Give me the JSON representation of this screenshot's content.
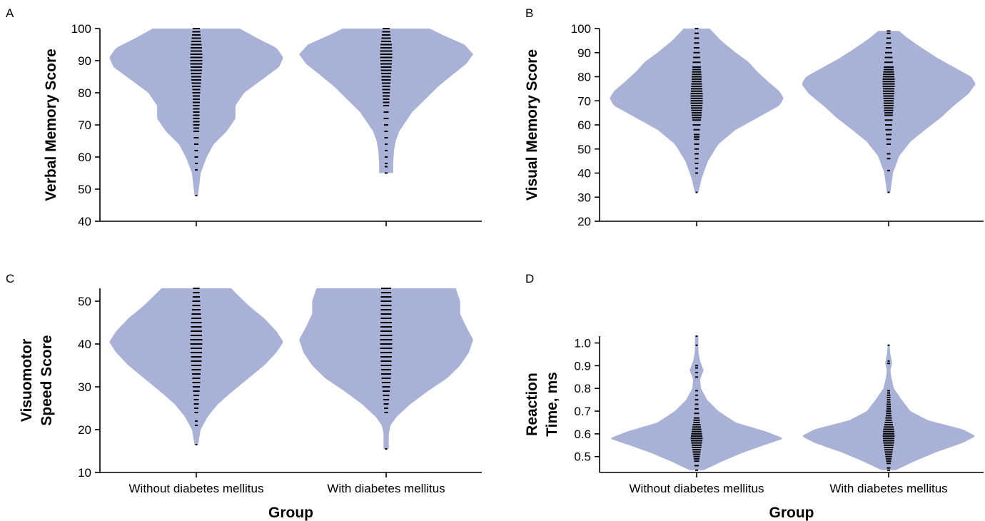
{
  "colors": {
    "violin": "#a9b2d6",
    "points": "#000000",
    "axis": "#000000",
    "background": "#ffffff"
  },
  "chart_data": [
    {
      "type": "violin",
      "panel_label": "A",
      "title": "",
      "ylabel": "Verbal Memory Score",
      "xlabel": "",
      "ylim": [
        40,
        100
      ],
      "yticks": [
        40,
        50,
        60,
        70,
        80,
        90,
        100
      ],
      "categories": [
        "Without diabetes mellitus",
        "With diabetes mellitus"
      ],
      "show_category_labels": false,
      "grid": false,
      "distributions": [
        {
          "category": "Without diabetes mellitus",
          "range": [
            48,
            100
          ],
          "density": [
            [
              48,
              0.02
            ],
            [
              55,
              0.05
            ],
            [
              60,
              0.12
            ],
            [
              64,
              0.2
            ],
            [
              68,
              0.35
            ],
            [
              72,
              0.45
            ],
            [
              76,
              0.45
            ],
            [
              80,
              0.55
            ],
            [
              84,
              0.75
            ],
            [
              88,
              0.95
            ],
            [
              91,
              1.0
            ],
            [
              94,
              0.92
            ],
            [
              97,
              0.7
            ],
            [
              100,
              0.5
            ]
          ],
          "points": [
            48,
            56,
            58,
            60,
            62,
            64,
            66,
            68,
            69,
            70,
            71,
            72,
            73,
            74,
            75,
            76,
            77,
            78,
            79,
            80,
            81,
            82,
            83,
            84,
            85,
            86,
            87,
            88,
            89,
            90,
            91,
            92,
            93,
            94,
            95,
            96,
            97,
            98,
            99,
            100
          ]
        },
        {
          "category": "With diabetes mellitus",
          "range": [
            55,
            100
          ],
          "density": [
            [
              55,
              0.08
            ],
            [
              58,
              0.08
            ],
            [
              62,
              0.09
            ],
            [
              65,
              0.11
            ],
            [
              68,
              0.15
            ],
            [
              70,
              0.2
            ],
            [
              74,
              0.3
            ],
            [
              78,
              0.45
            ],
            [
              82,
              0.6
            ],
            [
              86,
              0.78
            ],
            [
              89,
              0.92
            ],
            [
              92,
              1.0
            ],
            [
              95,
              0.9
            ],
            [
              98,
              0.65
            ],
            [
              100,
              0.5
            ]
          ],
          "points": [
            55,
            57,
            58,
            60,
            62,
            64,
            66,
            68,
            70,
            72,
            74,
            76,
            77,
            78,
            79,
            80,
            81,
            82,
            83,
            84,
            85,
            86,
            87,
            88,
            89,
            90,
            91,
            92,
            93,
            94,
            95,
            96,
            97,
            98,
            99,
            100
          ]
        }
      ]
    },
    {
      "type": "violin",
      "panel_label": "B",
      "title": "",
      "ylabel": "Visual Memory Score",
      "xlabel": "",
      "ylim": [
        20,
        100
      ],
      "yticks": [
        20,
        30,
        40,
        50,
        60,
        70,
        80,
        90,
        100
      ],
      "categories": [
        "Without diabetes mellitus",
        "With diabetes mellitus"
      ],
      "show_category_labels": false,
      "grid": false,
      "distributions": [
        {
          "category": "Without diabetes mellitus",
          "range": [
            32,
            100
          ],
          "density": [
            [
              32,
              0.02
            ],
            [
              38,
              0.06
            ],
            [
              45,
              0.13
            ],
            [
              52,
              0.25
            ],
            [
              58,
              0.45
            ],
            [
              64,
              0.75
            ],
            [
              68,
              0.95
            ],
            [
              71,
              1.0
            ],
            [
              74,
              0.95
            ],
            [
              78,
              0.82
            ],
            [
              82,
              0.7
            ],
            [
              86,
              0.6
            ],
            [
              90,
              0.45
            ],
            [
              95,
              0.28
            ],
            [
              100,
              0.15
            ]
          ],
          "points": [
            32,
            40,
            42,
            44,
            46,
            48,
            50,
            52,
            54,
            55,
            56,
            58,
            60,
            62,
            63,
            64,
            65,
            66,
            67,
            68,
            69,
            70,
            71,
            72,
            73,
            74,
            75,
            76,
            77,
            78,
            79,
            80,
            81,
            82,
            83,
            84,
            86,
            88,
            90,
            92,
            94,
            96,
            98,
            100
          ]
        },
        {
          "category": "With diabetes mellitus",
          "range": [
            32,
            99
          ],
          "density": [
            [
              32,
              0.02
            ],
            [
              40,
              0.05
            ],
            [
              47,
              0.12
            ],
            [
              53,
              0.25
            ],
            [
              58,
              0.42
            ],
            [
              63,
              0.6
            ],
            [
              68,
              0.75
            ],
            [
              73,
              0.92
            ],
            [
              77,
              1.0
            ],
            [
              80,
              0.95
            ],
            [
              84,
              0.75
            ],
            [
              88,
              0.55
            ],
            [
              92,
              0.38
            ],
            [
              96,
              0.22
            ],
            [
              99,
              0.12
            ]
          ],
          "points": [
            32,
            41,
            46,
            48,
            52,
            54,
            56,
            58,
            60,
            62,
            64,
            65,
            66,
            67,
            68,
            69,
            70,
            71,
            72,
            73,
            74,
            75,
            76,
            77,
            78,
            79,
            80,
            81,
            82,
            83,
            84,
            86,
            88,
            90,
            92,
            94,
            96,
            98,
            99
          ]
        }
      ]
    },
    {
      "type": "violin",
      "panel_label": "C",
      "title": "",
      "ylabel": "Visuomotor Speed Score",
      "xlabel": "Group",
      "ylim": [
        10,
        53
      ],
      "yticks": [
        10,
        20,
        30,
        40,
        50
      ],
      "categories": [
        "Without diabetes mellitus",
        "With diabetes mellitus"
      ],
      "show_category_labels": true,
      "grid": false,
      "distributions": [
        {
          "category": "Without diabetes mellitus",
          "range": [
            16.5,
            53
          ],
          "density": [
            [
              16.5,
              0.02
            ],
            [
              20,
              0.05
            ],
            [
              23,
              0.13
            ],
            [
              26,
              0.25
            ],
            [
              29,
              0.42
            ],
            [
              32,
              0.6
            ],
            [
              35,
              0.78
            ],
            [
              38,
              0.92
            ],
            [
              40.5,
              1.0
            ],
            [
              43,
              0.92
            ],
            [
              46,
              0.78
            ],
            [
              49,
              0.6
            ],
            [
              52,
              0.45
            ],
            [
              53,
              0.4
            ]
          ],
          "points": [
            16.5,
            21,
            22,
            24,
            25,
            26,
            27,
            28,
            29,
            30,
            31,
            32,
            33,
            34,
            35,
            36,
            37,
            38,
            39,
            40,
            41,
            42,
            43,
            44,
            45,
            46,
            47,
            48,
            49,
            50,
            51,
            52,
            53
          ]
        },
        {
          "category": "With diabetes mellitus",
          "range": [
            15.5,
            53
          ],
          "density": [
            [
              15.5,
              0.03
            ],
            [
              17,
              0.03
            ],
            [
              19,
              0.03
            ],
            [
              21,
              0.05
            ],
            [
              23,
              0.12
            ],
            [
              26,
              0.28
            ],
            [
              29,
              0.48
            ],
            [
              32,
              0.7
            ],
            [
              35,
              0.85
            ],
            [
              38,
              0.95
            ],
            [
              41,
              1.0
            ],
            [
              44,
              0.92
            ],
            [
              47,
              0.85
            ],
            [
              50,
              0.85
            ],
            [
              53,
              0.8
            ]
          ],
          "points": [
            15.5,
            24,
            25,
            26,
            27,
            28,
            29,
            30,
            31,
            32,
            33,
            34,
            35,
            36,
            37,
            38,
            39,
            40,
            41,
            42,
            43,
            44,
            45,
            46,
            47,
            48,
            49,
            50,
            51,
            52,
            53
          ]
        }
      ]
    },
    {
      "type": "violin",
      "panel_label": "D",
      "title": "",
      "ylabel": "Reaction Time, ms",
      "xlabel": "Group",
      "ylim": [
        0.43,
        1.03
      ],
      "yticks": [
        0.5,
        0.6,
        0.7,
        0.8,
        0.9,
        1.0
      ],
      "categories": [
        "Without diabetes mellitus",
        "With diabetes mellitus"
      ],
      "show_category_labels": true,
      "grid": false,
      "distributions": [
        {
          "category": "Without diabetes mellitus",
          "range": [
            0.44,
            1.03
          ],
          "density": [
            [
              0.44,
              0.08
            ],
            [
              0.48,
              0.3
            ],
            [
              0.52,
              0.55
            ],
            [
              0.56,
              0.85
            ],
            [
              0.58,
              1.0
            ],
            [
              0.61,
              0.8
            ],
            [
              0.65,
              0.45
            ],
            [
              0.7,
              0.25
            ],
            [
              0.75,
              0.12
            ],
            [
              0.8,
              0.05
            ],
            [
              0.84,
              0.04
            ],
            [
              0.88,
              0.08
            ],
            [
              0.92,
              0.04
            ],
            [
              0.96,
              0.02
            ],
            [
              1.0,
              0.02
            ],
            [
              1.03,
              0.02
            ]
          ],
          "points": [
            0.44,
            0.46,
            0.48,
            0.49,
            0.5,
            0.51,
            0.52,
            0.53,
            0.54,
            0.55,
            0.56,
            0.57,
            0.58,
            0.59,
            0.6,
            0.61,
            0.62,
            0.63,
            0.64,
            0.65,
            0.66,
            0.67,
            0.69,
            0.71,
            0.73,
            0.75,
            0.77,
            0.79,
            0.85,
            0.87,
            0.89,
            0.9,
            0.99,
            1.03
          ]
        },
        {
          "category": "With diabetes mellitus",
          "range": [
            0.44,
            0.99
          ],
          "density": [
            [
              0.44,
              0.08
            ],
            [
              0.48,
              0.3
            ],
            [
              0.52,
              0.55
            ],
            [
              0.56,
              0.85
            ],
            [
              0.59,
              1.0
            ],
            [
              0.62,
              0.85
            ],
            [
              0.66,
              0.45
            ],
            [
              0.7,
              0.25
            ],
            [
              0.75,
              0.15
            ],
            [
              0.8,
              0.06
            ],
            [
              0.85,
              0.03
            ],
            [
              0.88,
              0.02
            ],
            [
              0.91,
              0.04
            ],
            [
              0.95,
              0.02
            ],
            [
              0.99,
              0.01
            ]
          ],
          "points": [
            0.44,
            0.45,
            0.47,
            0.48,
            0.49,
            0.5,
            0.51,
            0.52,
            0.53,
            0.54,
            0.55,
            0.56,
            0.57,
            0.58,
            0.59,
            0.6,
            0.61,
            0.62,
            0.63,
            0.64,
            0.65,
            0.66,
            0.67,
            0.68,
            0.69,
            0.7,
            0.71,
            0.72,
            0.73,
            0.74,
            0.75,
            0.76,
            0.77,
            0.78,
            0.79,
            0.91,
            0.92,
            0.99
          ]
        }
      ]
    }
  ]
}
